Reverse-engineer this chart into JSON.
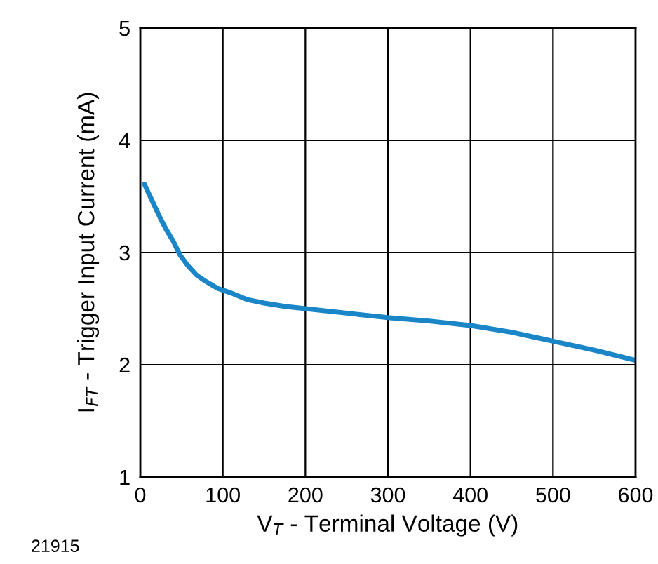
{
  "chart_data": {
    "type": "line",
    "xlabel": "V$_{T}$ - Terminal Voltage (V)",
    "ylabel": "I$_{FT}$ - Trigger Input Current (mA)",
    "annotations": [
      "21915"
    ],
    "xlim": [
      0,
      600
    ],
    "ylim": [
      1,
      5
    ],
    "xticks": [
      0,
      100,
      200,
      300,
      400,
      500,
      600
    ],
    "yticks": [
      1,
      2,
      3,
      4,
      5
    ],
    "grid": true,
    "series": [
      {
        "color": "#1a86c8",
        "x": [
          5,
          10,
          17,
          24,
          31,
          40,
          48,
          58,
          68,
          80,
          94,
          110,
          130,
          150,
          175,
          200,
          250,
          300,
          350,
          400,
          450,
          500,
          550,
          600
        ],
        "values": [
          3.61,
          3.53,
          3.42,
          3.31,
          3.21,
          3.1,
          2.98,
          2.88,
          2.8,
          2.74,
          2.68,
          2.64,
          2.58,
          2.55,
          2.52,
          2.5,
          2.46,
          2.42,
          2.39,
          2.35,
          2.29,
          2.21,
          2.13,
          2.04
        ]
      }
    ]
  }
}
